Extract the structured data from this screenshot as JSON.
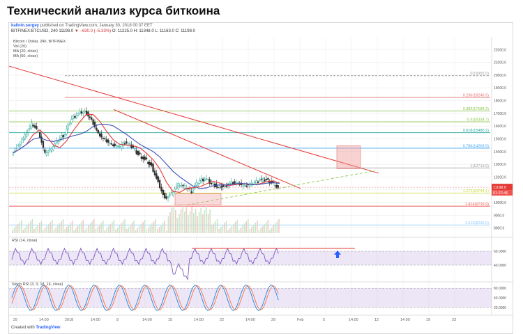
{
  "page": {
    "title": "Технический анализ курса биткоина"
  },
  "header": {
    "author": "kalinin.sergey",
    "published_text": "published on TradingView.com, January 30, 2018 00:37 EET",
    "symbol_line": "BITFINEX:BTCUSD, 240",
    "price": "11198.0",
    "change": "▼ −630.0 (−5.33%)",
    "ohlc": "O: 11225.0 H: 11348.0 L: 11163.0 C: 11198.0"
  },
  "legend": {
    "line1": "Bitcoin / Dollar, 240, BITFINEX",
    "line2": "Vol (20)",
    "line3": "MA (20, close)",
    "line4": "MA (50, close)"
  },
  "rsi_label": "RSI (14, close)",
  "stoch_label": "Stoch RSI (3, 3, 18, 16, close)",
  "footer": {
    "created_with": "Created with",
    "brand": "TradingView"
  },
  "colors": {
    "accent": "#2962ff",
    "down": "#e53935",
    "up": "#26a69a",
    "ma20": "#e53935",
    "ma50": "#3f51b5",
    "rsi": "#7e57c2"
  },
  "chart_data": {
    "type": "candlestick",
    "title": "Bitcoin / Dollar, 240, BITFINEX",
    "ylim": [
      7600,
      23000
    ],
    "y_ticks": [
      8000,
      9000,
      10000,
      11000,
      12000,
      13000,
      14000,
      15000,
      16000,
      17000,
      18000,
      19000,
      20000,
      21000,
      22000
    ],
    "x_ticks": [
      "25",
      "14:00",
      "2018",
      "14:00",
      "8",
      "14:00",
      "15",
      "14:00",
      "22",
      "14:00",
      "29",
      "Feb",
      "5",
      "14:00",
      "12",
      "14:00",
      "19",
      "23"
    ],
    "price_path": [
      13900,
      14500,
      15300,
      16200,
      15600,
      13800,
      14200,
      14900,
      15400,
      16600,
      17000,
      17200,
      16500,
      15400,
      14900,
      14500,
      14300,
      14700,
      14400,
      13800,
      13400,
      12900,
      11600,
      10300,
      10700,
      11400,
      11200,
      10900,
      11600,
      11900,
      11500,
      11200,
      11300,
      11600,
      11500,
      11300,
      11400,
      11700,
      11800,
      11600,
      11200
    ],
    "fibonacci": [
      {
        "level": "0",
        "value": 19955.5,
        "label": "0(19955.5)"
      },
      {
        "level": "0.236",
        "value": 18246.5,
        "label": "0.236(18246.5)"
      },
      {
        "level": "0.382",
        "value": 17189.2,
        "label": "0.382(17189.2)"
      },
      {
        "level": "0.5",
        "value": 16334.7,
        "label": "0.5(16334.7)"
      },
      {
        "level": "0.618",
        "value": 15480.2,
        "label": "0.618(15480.2)"
      },
      {
        "level": "0.786",
        "value": 14263.5,
        "label": "0.786(14263.5)"
      },
      {
        "level": "1",
        "value": 12713.6,
        "label": "1(12713.6)"
      },
      {
        "level": "1.272",
        "value": 10744.1,
        "label": "1.272(10744.1)"
      },
      {
        "level": "1.414",
        "value": 9715.9,
        "label": "1.414(9715.9)"
      },
      {
        "level": "1.618",
        "value": 8239.5,
        "label": "1.618(8239.5)"
      }
    ],
    "price_tags": [
      {
        "value": 11198.0,
        "label": "11198.0"
      },
      {
        "value": 10900,
        "label": "01:22:46"
      }
    ],
    "rsi": {
      "levels": [
        60,
        40
      ],
      "ticks": [
        "60.0000",
        "40.0000"
      ]
    },
    "stoch": {
      "levels": [
        80,
        20
      ],
      "ticks": [
        "80.0000",
        "40.0000",
        "20.0000"
      ]
    }
  }
}
